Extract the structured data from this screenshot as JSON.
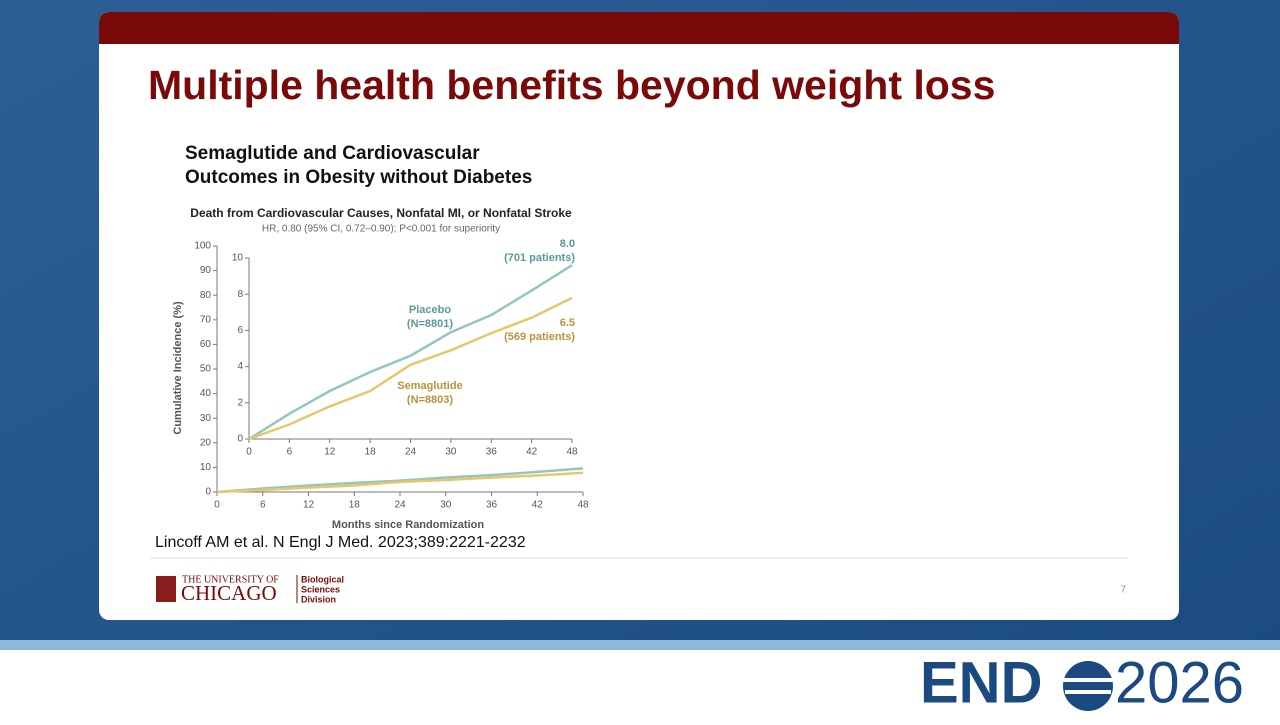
{
  "slide": {
    "title": "Multiple health benefits beyond weight loss",
    "heading": [
      "Semaglutide and Cardiovascular",
      "Outcomes in Obesity without Diabetes"
    ],
    "citation": "Lincoff AM et al. N Engl J Med. 2023;389:2221-2232",
    "logo": {
      "line1": "THE UNIVERSITY OF",
      "line2": "CHICAGO",
      "division": [
        "Biological",
        "Sciences",
        "Division"
      ]
    },
    "page_number": "7",
    "event": {
      "left": "END",
      "right": "2026"
    }
  },
  "chart_data": {
    "type": "line",
    "title": "Death from Cardiovascular Causes, Nonfatal MI, or Nonfatal Stroke",
    "subtitle": "HR, 0.80 (95% CI, 0.72–0.90); P<0.001 for superiority",
    "xlabel": "Months since Randomization",
    "ylabel": "Cumulative Incidence (%)",
    "x": [
      0,
      6,
      12,
      18,
      24,
      30,
      36,
      42,
      48
    ],
    "series": [
      {
        "name": "Placebo",
        "color": "#93c6c0",
        "values": [
          0,
          1.4,
          2.65,
          3.7,
          4.6,
          5.9,
          6.85,
          8.2,
          9.6
        ]
      },
      {
        "name": "Semaglutide",
        "color": "#e8c76a",
        "values": [
          0,
          0.8,
          1.8,
          2.65,
          4.1,
          4.9,
          5.85,
          6.7,
          7.8
        ]
      }
    ],
    "xlim": [
      0,
      48
    ],
    "ylim": [
      0,
      100
    ],
    "xticks": [
      0,
      6,
      12,
      18,
      24,
      30,
      36,
      42,
      48
    ],
    "yticks": [
      0,
      10,
      20,
      30,
      40,
      50,
      60,
      70,
      80,
      90,
      100
    ],
    "inset": {
      "xlim": [
        0,
        48
      ],
      "ylim": [
        0,
        10
      ],
      "xticks": [
        0,
        6,
        12,
        18,
        24,
        30,
        36,
        42,
        48
      ],
      "yticks": [
        0,
        2,
        4,
        6,
        8,
        10
      ]
    },
    "annotations": [
      "(N=8801)",
      "(N=8803)",
      "8.0",
      "(701 patients)",
      "6.5",
      "(569 patients)"
    ]
  }
}
